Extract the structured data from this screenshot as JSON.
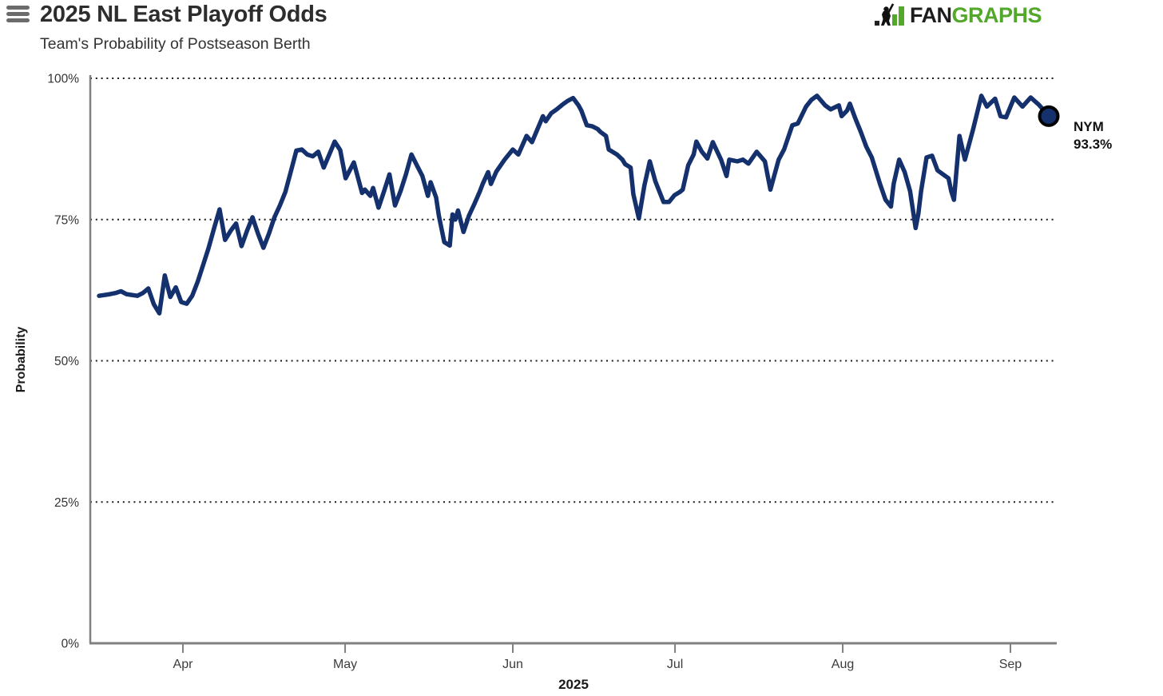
{
  "header": {
    "title": "2025 NL East Playoff Odds",
    "subtitle": "Team's Probability of Postseason Berth",
    "logo": {
      "fan": "FAN",
      "graphs": "GRAPHS",
      "green": "#53a82c",
      "dark": "#1d1d1d"
    }
  },
  "annotation": {
    "team": "NYM",
    "value": "93.3%"
  },
  "chart_data": {
    "type": "line",
    "title": "2025 NL East Playoff Odds",
    "subtitle": "Team's Probability of Postseason Berth",
    "xlabel": "2025",
    "ylabel": "Probability",
    "ylim": [
      0,
      100
    ],
    "grid": "horizontal dotted at 25, 50, 75, 100",
    "legend": "none (single series, end-labeled NYM 93.3%)",
    "line_color": "#14316e",
    "axis_color": "#808080",
    "grid_color": "#1a1a1a",
    "tick_text_color": "#3c3c3c",
    "y_ticks": [
      {
        "label": "0%",
        "v": 0
      },
      {
        "label": "25%",
        "v": 25
      },
      {
        "label": "50%",
        "v": 50
      },
      {
        "label": "75%",
        "v": 75
      },
      {
        "label": "100%",
        "v": 100
      }
    ],
    "x_ticks": [
      {
        "label": "Apr",
        "t": 15.3
      },
      {
        "label": "May",
        "t": 44.9
      },
      {
        "label": "Jun",
        "t": 75.5
      },
      {
        "label": "Jul",
        "t": 105.1
      },
      {
        "label": "Aug",
        "t": 135.7
      },
      {
        "label": "Sep",
        "t": 166.3
      }
    ],
    "t_note": "t = days since first point (~Mar 17, 2025); v = playoff probability %",
    "series": [
      {
        "name": "NYM",
        "end_value": 93.3,
        "points": [
          [
            0,
            61.5
          ],
          [
            2,
            61.8
          ],
          [
            3,
            62
          ],
          [
            4,
            62.3
          ],
          [
            5,
            61.8
          ],
          [
            7,
            61.5
          ],
          [
            8,
            62
          ],
          [
            9,
            62.8
          ],
          [
            10,
            60
          ],
          [
            11,
            58.4
          ],
          [
            12,
            65.1
          ],
          [
            13,
            61.3
          ],
          [
            14,
            63
          ],
          [
            15,
            60.4
          ],
          [
            16,
            60.1
          ],
          [
            17,
            61.5
          ],
          [
            18,
            64
          ],
          [
            19,
            67
          ],
          [
            20,
            70
          ],
          [
            21,
            73.5
          ],
          [
            22,
            76.8
          ],
          [
            23,
            71.4
          ],
          [
            24,
            73
          ],
          [
            25,
            74.3
          ],
          [
            26,
            70.3
          ],
          [
            27,
            73
          ],
          [
            28,
            75.4
          ],
          [
            29,
            72.5
          ],
          [
            30,
            70
          ],
          [
            31,
            72.5
          ],
          [
            32,
            75.4
          ],
          [
            33,
            77.5
          ],
          [
            34,
            79.9
          ],
          [
            35,
            83.5
          ],
          [
            36,
            87.2
          ],
          [
            37,
            87.4
          ],
          [
            38,
            86.5
          ],
          [
            39,
            86.2
          ],
          [
            40,
            87
          ],
          [
            41,
            84.2
          ],
          [
            42,
            86.5
          ],
          [
            43,
            88.8
          ],
          [
            44,
            87.3
          ],
          [
            45,
            82.3
          ],
          [
            46.5,
            85.1
          ],
          [
            48,
            79.7
          ],
          [
            48.5,
            80.3
          ],
          [
            49.5,
            79.2
          ],
          [
            50,
            80.6
          ],
          [
            51,
            77.1
          ],
          [
            52,
            80
          ],
          [
            53,
            83
          ],
          [
            54,
            77.5
          ],
          [
            55,
            80
          ],
          [
            56,
            83
          ],
          [
            57,
            86.5
          ],
          [
            58,
            84.6
          ],
          [
            59,
            82.7
          ],
          [
            60,
            79.2
          ],
          [
            60.5,
            81.6
          ],
          [
            61.5,
            78.9
          ],
          [
            62,
            75.7
          ],
          [
            63,
            71
          ],
          [
            64,
            70.4
          ],
          [
            64.5,
            75.9
          ],
          [
            65,
            75
          ],
          [
            65.5,
            76.6
          ],
          [
            66.5,
            72.8
          ],
          [
            67.5,
            75.7
          ],
          [
            68.5,
            77.8
          ],
          [
            69.5,
            80
          ],
          [
            70,
            81.3
          ],
          [
            71,
            83.4
          ],
          [
            71.5,
            81.3
          ],
          [
            72.5,
            83.5
          ],
          [
            74,
            85.6
          ],
          [
            75.5,
            87.4
          ],
          [
            76.5,
            86.5
          ],
          [
            78,
            89.8
          ],
          [
            79,
            88.7
          ],
          [
            80,
            91
          ],
          [
            81,
            93.3
          ],
          [
            81.5,
            92.4
          ],
          [
            82.5,
            93.8
          ],
          [
            83.5,
            94.5
          ],
          [
            84.5,
            95.3
          ],
          [
            85.5,
            96
          ],
          [
            86.5,
            96.5
          ],
          [
            87.5,
            95.2
          ],
          [
            88,
            94.3
          ],
          [
            89,
            91.7
          ],
          [
            90,
            91.5
          ],
          [
            91,
            91
          ],
          [
            91.5,
            90.5
          ],
          [
            92.5,
            89.8
          ],
          [
            93,
            87.4
          ],
          [
            94.5,
            86.5
          ],
          [
            95.5,
            85.6
          ],
          [
            96,
            84.8
          ],
          [
            97,
            84.2
          ],
          [
            97.5,
            79.5
          ],
          [
            98.5,
            75.2
          ],
          [
            99.5,
            81
          ],
          [
            100.5,
            85.3
          ],
          [
            101.5,
            81.8
          ],
          [
            103,
            78.1
          ],
          [
            104,
            78.1
          ],
          [
            105,
            79.3
          ],
          [
            106,
            79.9
          ],
          [
            106.5,
            80.3
          ],
          [
            107.5,
            84.6
          ],
          [
            108.5,
            86.5
          ],
          [
            109,
            88.8
          ],
          [
            110,
            87
          ],
          [
            111,
            85.8
          ],
          [
            112,
            88.7
          ],
          [
            113.5,
            85.6
          ],
          [
            114.5,
            82.7
          ],
          [
            115,
            85.6
          ],
          [
            116.5,
            85.3
          ],
          [
            117.5,
            85.6
          ],
          [
            118.5,
            84.9
          ],
          [
            120,
            87
          ],
          [
            121.5,
            85.3
          ],
          [
            122.5,
            80.3
          ],
          [
            124,
            85.6
          ],
          [
            125,
            87.4
          ],
          [
            126.5,
            91.7
          ],
          [
            127.5,
            92
          ],
          [
            129,
            95
          ],
          [
            130,
            96.2
          ],
          [
            131,
            96.9
          ],
          [
            132.5,
            95.2
          ],
          [
            133.5,
            94.5
          ],
          [
            135,
            95.2
          ],
          [
            135.5,
            93.3
          ],
          [
            136.5,
            94.3
          ],
          [
            137,
            95.5
          ],
          [
            138,
            92.9
          ],
          [
            139,
            90.5
          ],
          [
            140,
            87.9
          ],
          [
            141,
            86
          ],
          [
            142.5,
            81.3
          ],
          [
            143.5,
            78.5
          ],
          [
            144.5,
            77.3
          ],
          [
            145,
            81.3
          ],
          [
            146,
            85.6
          ],
          [
            147,
            83.4
          ],
          [
            148,
            80
          ],
          [
            149,
            73.5
          ],
          [
            149.5,
            76
          ],
          [
            150,
            80
          ],
          [
            151,
            86
          ],
          [
            152,
            86.3
          ],
          [
            153,
            83.7
          ],
          [
            154,
            83
          ],
          [
            155,
            82.3
          ],
          [
            155.5,
            80
          ],
          [
            156,
            78.5
          ],
          [
            157,
            89.8
          ],
          [
            158,
            85.6
          ],
          [
            159.5,
            91
          ],
          [
            161,
            96.9
          ],
          [
            162,
            95
          ],
          [
            163.5,
            96.4
          ],
          [
            164.5,
            93.3
          ],
          [
            165.5,
            93.1
          ],
          [
            167,
            96.6
          ],
          [
            168.5,
            95
          ],
          [
            170,
            96.6
          ],
          [
            171.5,
            95.3
          ],
          [
            172.5,
            94.2
          ],
          [
            173.3,
            93.3
          ]
        ]
      }
    ]
  }
}
